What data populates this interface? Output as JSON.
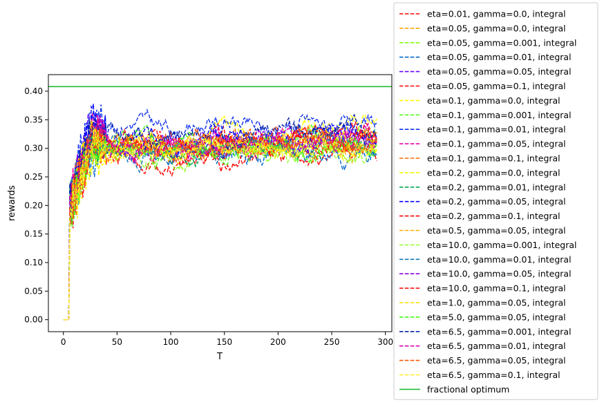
{
  "chart_data": {
    "type": "line",
    "title": "",
    "xlabel": "T",
    "ylabel": "rewards",
    "xlim": [
      -14,
      306
    ],
    "ylim": [
      -0.021,
      0.429
    ],
    "xticks": [
      0,
      50,
      100,
      150,
      200,
      250,
      300
    ],
    "yticks": [
      0.0,
      0.05,
      0.1,
      0.15,
      0.2,
      0.25,
      0.3,
      0.35,
      0.4
    ],
    "ytick_labels": [
      "0.00",
      "0.05",
      "0.10",
      "0.15",
      "0.20",
      "0.25",
      "0.30",
      "0.35",
      "0.40"
    ],
    "grid": false,
    "legend_position": "outside-right",
    "series": [
      {
        "name": "eta=0.01, gamma=0.0, integral",
        "color": "#ff0000",
        "style": "dashed",
        "end": 0.296,
        "mid": 0.272,
        "peak": 0.3,
        "seed": 1
      },
      {
        "name": "eta=0.05, gamma=0.0, integral",
        "color": "#ffa500",
        "style": "dashed",
        "end": 0.303,
        "mid": 0.298,
        "peak": 0.31,
        "seed": 2
      },
      {
        "name": "eta=0.05, gamma=0.001, integral",
        "color": "#7fff00",
        "style": "dashed",
        "end": 0.31,
        "mid": 0.297,
        "peak": 0.3,
        "seed": 3
      },
      {
        "name": "eta=0.05, gamma=0.01, integral",
        "color": "#0066cc",
        "style": "dashed",
        "end": 0.284,
        "mid": 0.293,
        "peak": 0.29,
        "seed": 4
      },
      {
        "name": "eta=0.05, gamma=0.05, integral",
        "color": "#6600ff",
        "style": "dashed",
        "end": 0.318,
        "mid": 0.302,
        "peak": 0.33,
        "seed": 5
      },
      {
        "name": "eta=0.05, gamma=0.1, integral",
        "color": "#ff0000",
        "style": "dashed",
        "end": 0.325,
        "mid": 0.305,
        "peak": 0.31,
        "seed": 6
      },
      {
        "name": "eta=0.1, gamma=0.0, integral",
        "color": "#ffff00",
        "style": "dashed",
        "end": 0.35,
        "mid": 0.31,
        "peak": 0.28,
        "seed": 7
      },
      {
        "name": "eta=0.1, gamma=0.001, integral",
        "color": "#55ff22",
        "style": "dashed",
        "end": 0.305,
        "mid": 0.3,
        "peak": 0.3,
        "seed": 8
      },
      {
        "name": "eta=0.1, gamma=0.01, integral",
        "color": "#1133ee",
        "style": "dashed",
        "end": 0.338,
        "mid": 0.34,
        "peak": 0.36,
        "seed": 9
      },
      {
        "name": "eta=0.1, gamma=0.05, integral",
        "color": "#ee00aa",
        "style": "dashed",
        "end": 0.315,
        "mid": 0.303,
        "peak": 0.34,
        "seed": 10
      },
      {
        "name": "eta=0.1, gamma=0.1, integral",
        "color": "#ff6a00",
        "style": "dashed",
        "end": 0.322,
        "mid": 0.306,
        "peak": 0.32,
        "seed": 11
      },
      {
        "name": "eta=0.2, gamma=0.0, integral",
        "color": "#eeff00",
        "style": "dashed",
        "end": 0.3,
        "mid": 0.3,
        "peak": 0.32,
        "seed": 12
      },
      {
        "name": "eta=0.2, gamma=0.01, integral",
        "color": "#00aa55",
        "style": "dashed",
        "end": 0.312,
        "mid": 0.297,
        "peak": 0.31,
        "seed": 13
      },
      {
        "name": "eta=0.2, gamma=0.05, integral",
        "color": "#0000ff",
        "style": "dashed",
        "end": 0.33,
        "mid": 0.31,
        "peak": 0.35,
        "seed": 14
      },
      {
        "name": "eta=0.2, gamma=0.1, integral",
        "color": "#ff0000",
        "style": "dashed",
        "end": 0.32,
        "mid": 0.3,
        "peak": 0.31,
        "seed": 15
      },
      {
        "name": "eta=0.5, gamma=0.05, integral",
        "color": "#ffaa00",
        "style": "dashed",
        "end": 0.308,
        "mid": 0.3,
        "peak": 0.31,
        "seed": 16
      },
      {
        "name": "eta=10.0, gamma=0.001, integral",
        "color": "#99ff33",
        "style": "dashed",
        "end": 0.298,
        "mid": 0.296,
        "peak": 0.3,
        "seed": 17
      },
      {
        "name": "eta=10.0, gamma=0.01, integral",
        "color": "#1177bb",
        "style": "dashed",
        "end": 0.302,
        "mid": 0.299,
        "peak": 0.3,
        "seed": 18
      },
      {
        "name": "eta=10.0, gamma=0.05, integral",
        "color": "#8800dd",
        "style": "dashed",
        "end": 0.312,
        "mid": 0.304,
        "peak": 0.33,
        "seed": 19
      },
      {
        "name": "eta=10.0, gamma=0.1, integral",
        "color": "#ff1111",
        "style": "dashed",
        "end": 0.318,
        "mid": 0.302,
        "peak": 0.31,
        "seed": 20
      },
      {
        "name": "eta=1.0, gamma=0.05, integral",
        "color": "#ffdd00",
        "style": "dashed",
        "end": 0.306,
        "mid": 0.301,
        "peak": 0.31,
        "seed": 21
      },
      {
        "name": "eta=5.0, gamma=0.05, integral",
        "color": "#44ff11",
        "style": "dashed",
        "end": 0.3,
        "mid": 0.298,
        "peak": 0.31,
        "seed": 22
      },
      {
        "name": "eta=6.5, gamma=0.001, integral",
        "color": "#0022aa",
        "style": "dashed",
        "end": 0.336,
        "mid": 0.318,
        "peak": 0.33,
        "seed": 23
      },
      {
        "name": "eta=6.5, gamma=0.01, integral",
        "color": "#dd00aa",
        "style": "dashed",
        "end": 0.31,
        "mid": 0.302,
        "peak": 0.33,
        "seed": 24
      },
      {
        "name": "eta=6.5, gamma=0.05, integral",
        "color": "#ff5500",
        "style": "dashed",
        "end": 0.316,
        "mid": 0.305,
        "peak": 0.32,
        "seed": 25
      },
      {
        "name": "eta=6.5, gamma=0.1, integral",
        "color": "#ffee22",
        "style": "dashed",
        "end": 0.302,
        "mid": 0.3,
        "peak": 0.3,
        "seed": 26
      }
    ],
    "reference_line": {
      "name": "fractional optimum",
      "color": "#22bb33",
      "style": "solid",
      "y": 0.408
    }
  }
}
